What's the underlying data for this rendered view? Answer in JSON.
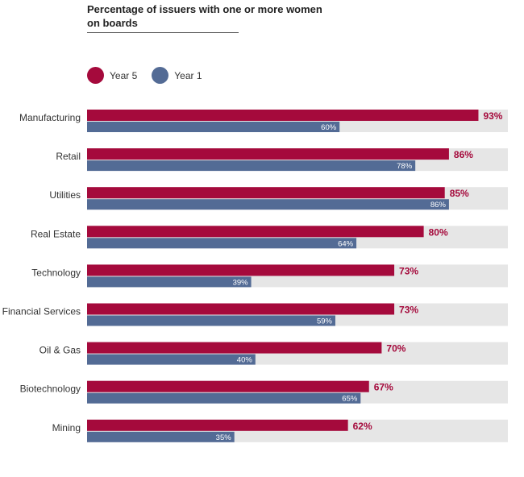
{
  "chart_data": {
    "type": "bar",
    "orientation": "horizontal",
    "title": "Percentage of issuers with one or more women on boards",
    "xlabel": "",
    "ylabel": "",
    "xlim": [
      0,
      100
    ],
    "grid": false,
    "legend_position": "top-left",
    "categories": [
      "Manufacturing",
      "Retail",
      "Utilities",
      "Real Estate",
      "Technology",
      "Financial Services",
      "Oil & Gas",
      "Biotechnology",
      "Mining"
    ],
    "series": [
      {
        "name": "Year 5",
        "color": "#a50a3c",
        "values": [
          93,
          86,
          85,
          80,
          73,
          73,
          70,
          67,
          62
        ]
      },
      {
        "name": "Year 1",
        "color": "#536b95",
        "values": [
          60,
          78,
          86,
          64,
          39,
          59,
          40,
          65,
          35
        ]
      }
    ],
    "track_color": "#e6e6e6",
    "value_suffix": "%"
  }
}
